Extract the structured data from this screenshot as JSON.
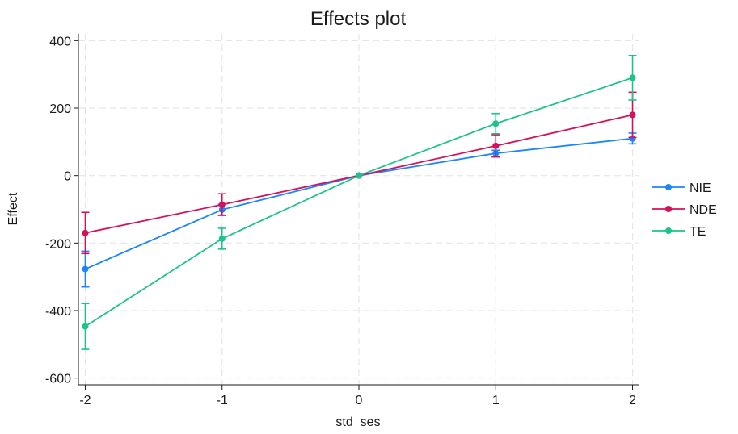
{
  "chart_data": {
    "type": "line",
    "title": "Effects plot",
    "xlabel": "std_ses",
    "ylabel": "Effect",
    "x": [
      -2,
      -1,
      0,
      1,
      2
    ],
    "xlim": [
      -2.05,
      2.05
    ],
    "ylim": [
      -620,
      420
    ],
    "x_ticks": [
      -2,
      -1,
      0,
      1,
      2
    ],
    "y_ticks": [
      -600,
      -400,
      -200,
      0,
      200,
      400
    ],
    "grid": true,
    "legend_position": "right",
    "series": [
      {
        "name": "NIE",
        "color": "#1a85ff",
        "values": [
          -277,
          -101,
          0,
          66,
          110
        ],
        "ci_lower": [
          -330,
          -117,
          0,
          57,
          94
        ],
        "ci_upper": [
          -224,
          -85,
          0,
          75,
          126
        ]
      },
      {
        "name": "NDE",
        "color": "#d41159",
        "values": [
          -170,
          -86,
          0,
          88,
          180
        ],
        "ci_lower": [
          -231,
          -118,
          0,
          55,
          113
        ],
        "ci_upper": [
          -109,
          -54,
          0,
          121,
          247
        ]
      },
      {
        "name": "TE",
        "color": "#1ec28b",
        "values": [
          -447,
          -187,
          0,
          154,
          290
        ],
        "ci_lower": [
          -515,
          -218,
          0,
          124,
          224
        ],
        "ci_upper": [
          -379,
          -156,
          0,
          184,
          356
        ]
      }
    ]
  }
}
